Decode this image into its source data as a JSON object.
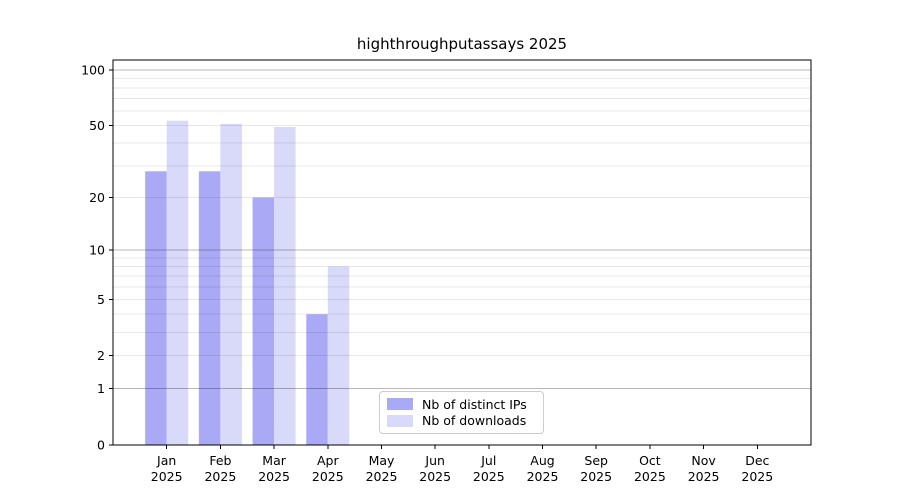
{
  "figure": {
    "title": "highthroughputassays 2025"
  },
  "chart_data": {
    "type": "bar",
    "title": "highthroughputassays 2025",
    "categories": [
      "Jan",
      "Feb",
      "Mar",
      "Apr",
      "May",
      "Jun",
      "Jul",
      "Aug",
      "Sep",
      "Oct",
      "Nov",
      "Dec"
    ],
    "x_tick_second_line": "2025",
    "series": [
      {
        "name": "Nb of distinct IPs",
        "key": "distinct-ips",
        "color": "#a9a9f6",
        "values": [
          28,
          28,
          20,
          4,
          0,
          0,
          0,
          0,
          0,
          0,
          0,
          0
        ]
      },
      {
        "name": "Nb of downloads",
        "key": "downloads",
        "color": "#d9d9f9",
        "values": [
          53,
          51,
          49,
          8,
          0,
          0,
          0,
          0,
          0,
          0,
          0,
          0
        ]
      }
    ],
    "xlabel": "",
    "ylabel": "",
    "y_axis": {
      "scale": "log1p",
      "tick_values": [
        0,
        1,
        2,
        5,
        10,
        20,
        50,
        100
      ],
      "max": 113,
      "major_grid_values": [
        1,
        10,
        100
      ],
      "minor_grid_values": [
        2,
        3,
        4,
        5,
        6,
        7,
        8,
        9,
        20,
        30,
        40,
        50,
        60,
        70,
        80,
        90
      ]
    },
    "grid": "horizontal",
    "legend_position": "lower center",
    "colors": {
      "axis": "#000000",
      "grid_major": "rgba(0,0,0,0.28)",
      "grid_minor": "rgba(0,0,0,0.09)",
      "background": "#ffffff"
    }
  }
}
